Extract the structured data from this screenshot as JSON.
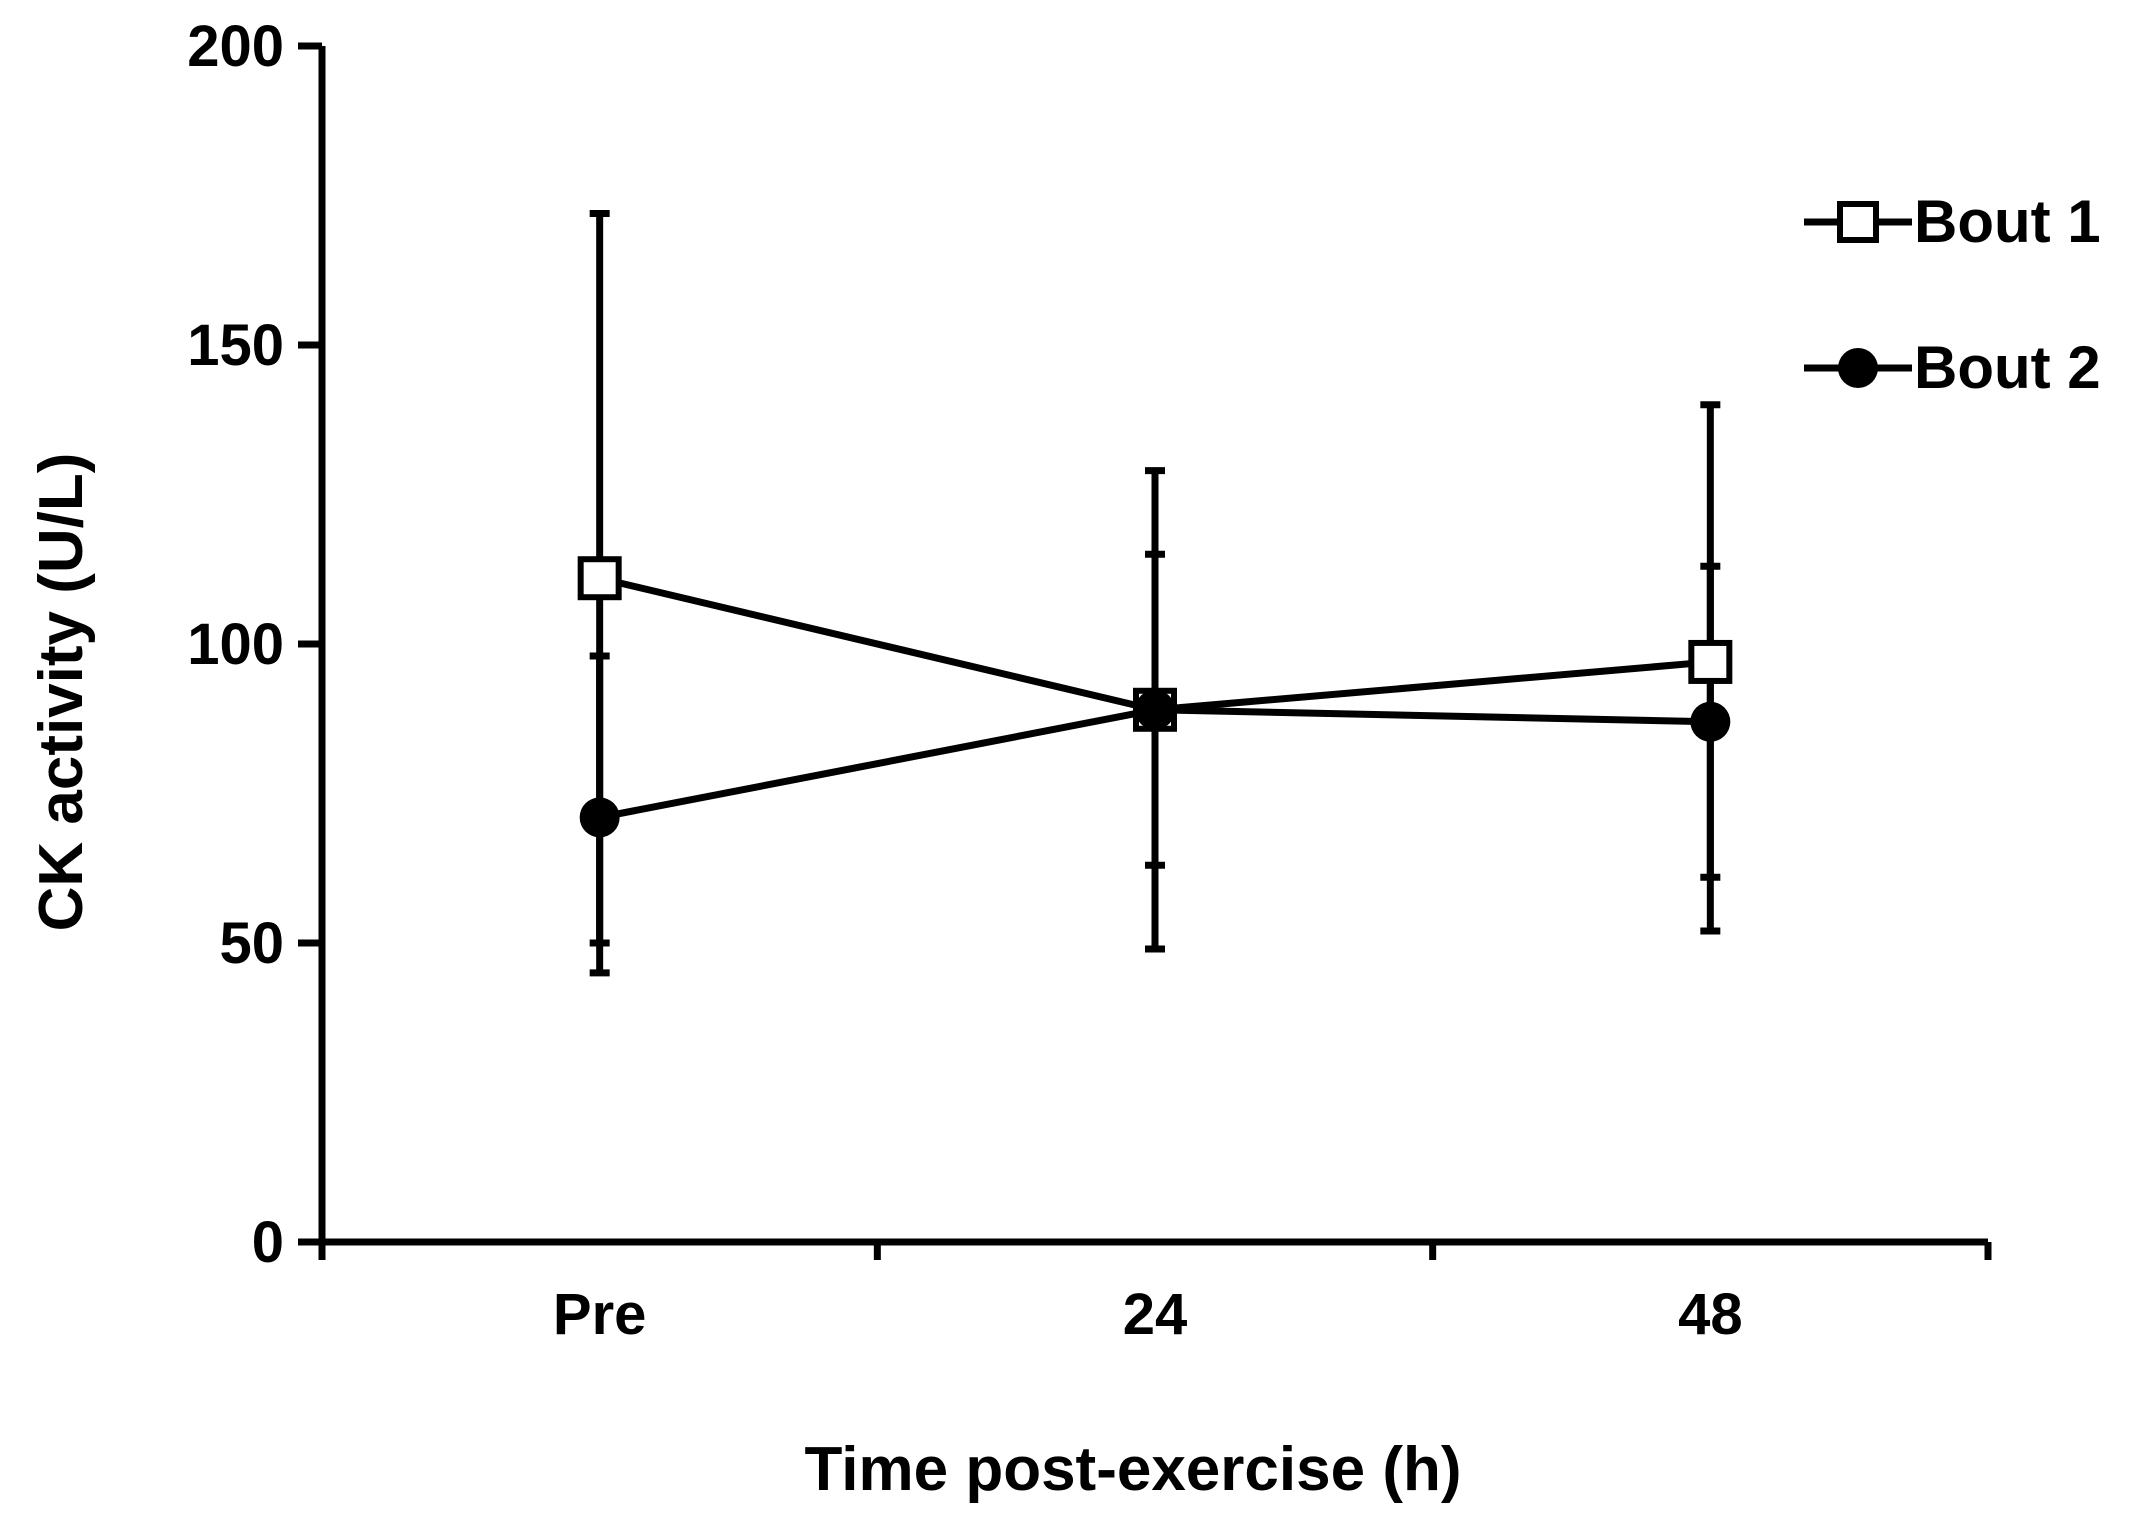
{
  "chart_data": {
    "type": "line",
    "title": "",
    "xlabel": "Time post-exercise (h)",
    "ylabel": "CK activity (U/L)",
    "categories": [
      "Pre",
      "24",
      "48"
    ],
    "ylim": [
      0,
      200
    ],
    "yticks": [
      0,
      50,
      100,
      150,
      200
    ],
    "grid": false,
    "legend_position": "top-right",
    "series": [
      {
        "name": "Bout 1",
        "marker": "open-square",
        "values": [
          111,
          89,
          97
        ],
        "error_upper": [
          172,
          129,
          140
        ],
        "error_lower": [
          50,
          49,
          52
        ]
      },
      {
        "name": "Bout 2",
        "marker": "filled-circle",
        "values": [
          71,
          89,
          87
        ],
        "error_upper": [
          98,
          115,
          113
        ],
        "error_lower": [
          45,
          63,
          61
        ]
      }
    ]
  },
  "colors": {
    "ink": "#000000",
    "background": "#ffffff"
  }
}
